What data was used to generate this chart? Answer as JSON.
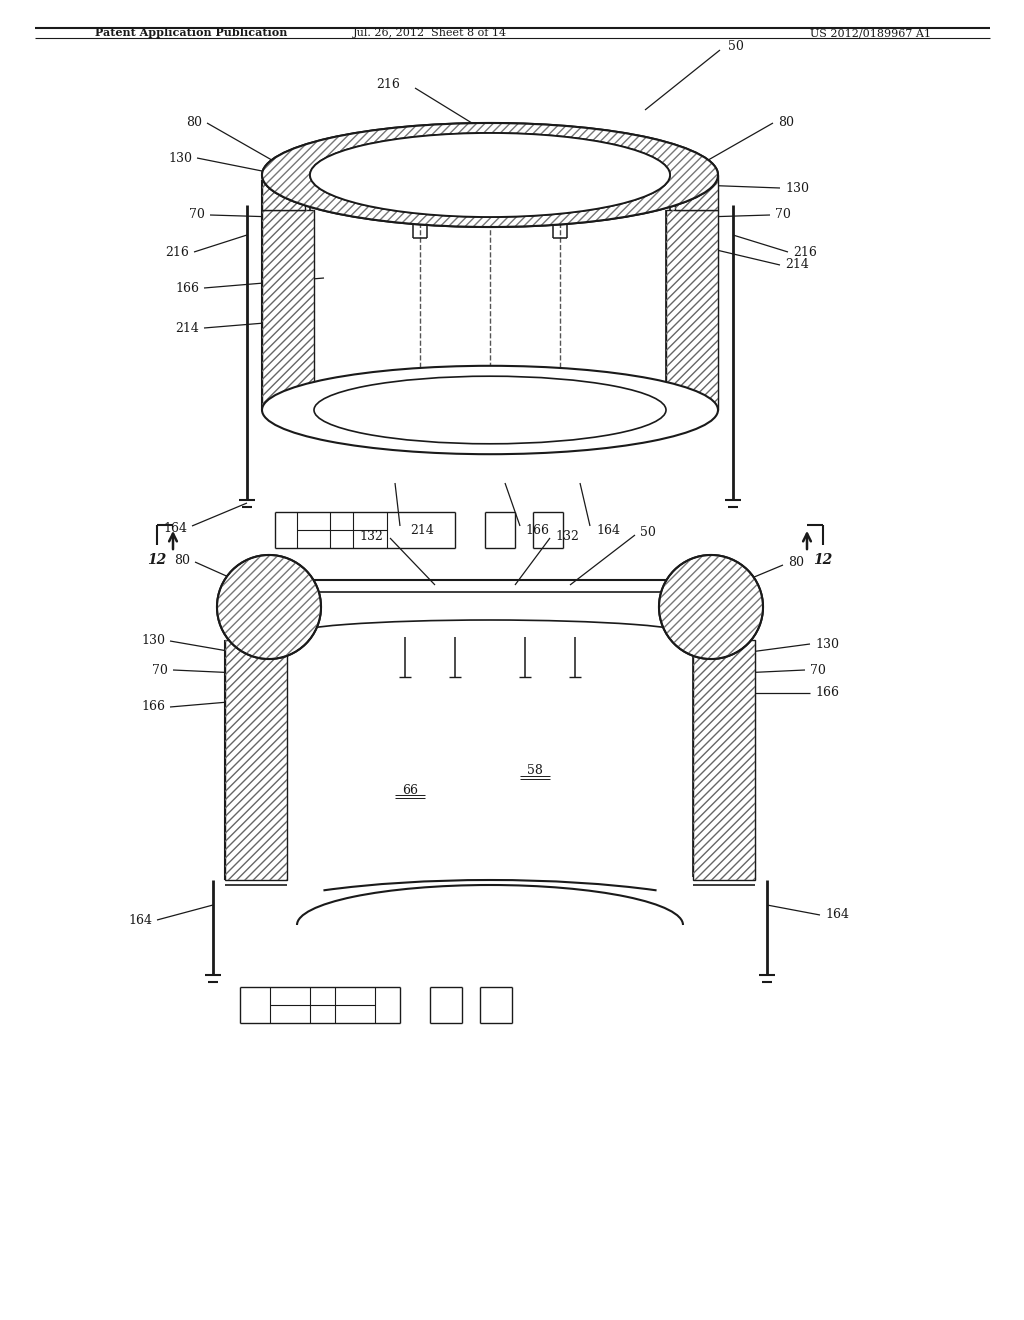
{
  "background_color": "#ffffff",
  "fig_width": 10.24,
  "fig_height": 13.2,
  "line_color": "#1a1a1a",
  "text_color": "#1a1a1a",
  "header_text1": "Patent Application Publication",
  "header_text2": "Jul. 26, 2012  Sheet 8 of 14",
  "header_text3": "US 2012/0189967 A1"
}
